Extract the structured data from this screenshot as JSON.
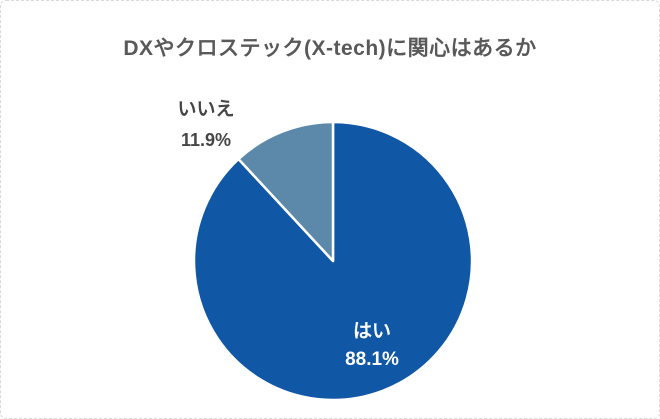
{
  "title": "DXやクロステック(X-tech)に関心はあるか",
  "chart_data": {
    "type": "pie",
    "title": "DXやクロステック(X-tech)に関心はあるか",
    "legend": "none",
    "start_angle_deg": 0,
    "direction": "clockwise",
    "slice_border_color": "#ffffff",
    "slices": [
      {
        "label": "はい",
        "value": 88.1,
        "display": "88.1%",
        "color": "#1057A6",
        "label_color": "#ffffff",
        "label_position": "inside"
      },
      {
        "label": "いいえ",
        "value": 11.9,
        "display": "11.9%",
        "color": "#5C89A9",
        "label_color": "#454545",
        "label_position": "outside"
      }
    ]
  },
  "colors": {
    "title_text": "#595959",
    "outside_label_text": "#454545",
    "card_border": "#d9d9d9",
    "background": "#ffffff"
  }
}
